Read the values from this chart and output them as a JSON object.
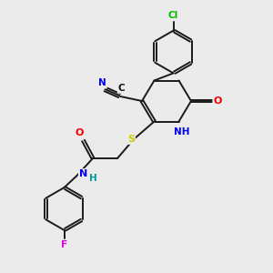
{
  "background_color": "#ebebeb",
  "bond_color": "#1a1a1a",
  "atom_colors": {
    "Cl": "#00bb00",
    "N": "#0000ee",
    "O": "#ee0000",
    "S": "#cccc00",
    "F": "#dd00dd",
    "C": "#111111",
    "H": "#009999"
  }
}
